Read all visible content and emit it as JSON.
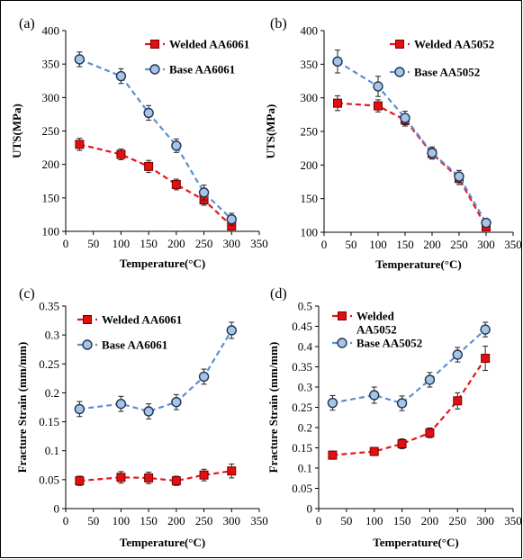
{
  "chart_data": [
    {
      "panel_label": "(a)",
      "type": "line",
      "xlabel": "Temperature(°C)",
      "ylabel": "UTS(MPa)",
      "xlim": [
        0,
        350
      ],
      "ylim": [
        100,
        400
      ],
      "xticks": [
        0,
        50,
        100,
        150,
        200,
        250,
        300,
        350
      ],
      "yticks": [
        100,
        150,
        200,
        250,
        300,
        350,
        400
      ],
      "x": [
        25,
        100,
        150,
        200,
        250,
        300
      ],
      "legend_position": "top-right",
      "series": [
        {
          "name": "Welded AA6061",
          "marker": "square",
          "color": "#e8141a",
          "marker_fill": "#e01010",
          "values": [
            230,
            215,
            197,
            170,
            147,
            108
          ],
          "errors": [
            9,
            8,
            9,
            8,
            8,
            6
          ]
        },
        {
          "name": "Base  AA6061",
          "marker": "circle",
          "color": "#5b8fcf",
          "marker_fill": "#a6c4e6",
          "values": [
            357,
            332,
            277,
            228,
            158,
            118
          ],
          "errors": [
            11,
            11,
            11,
            10,
            11,
            9
          ]
        }
      ]
    },
    {
      "panel_label": "(b)",
      "type": "line",
      "xlabel": "Temperature(°C)",
      "ylabel": "UTS(MPa)",
      "xlim": [
        0,
        350
      ],
      "ylim": [
        100,
        400
      ],
      "xticks": [
        0,
        50,
        100,
        150,
        200,
        250,
        300,
        350
      ],
      "yticks": [
        100,
        150,
        200,
        250,
        300,
        350,
        400
      ],
      "x": [
        25,
        100,
        150,
        200,
        250,
        300
      ],
      "legend_position": "top-right",
      "series": [
        {
          "name": "Welded AA5052",
          "marker": "square",
          "color": "#e8141a",
          "marker_fill": "#e01010",
          "values": [
            292,
            288,
            267,
            217,
            180,
            108
          ],
          "errors": [
            11,
            9,
            9,
            8,
            9,
            6
          ]
        },
        {
          "name": "Base AA5052",
          "marker": "circle",
          "color": "#5b8fcf",
          "marker_fill": "#a6c4e6",
          "values": [
            354,
            317,
            270,
            218,
            183,
            114
          ],
          "errors": [
            17,
            15,
            10,
            9,
            9,
            6
          ]
        }
      ]
    },
    {
      "panel_label": "(c)",
      "type": "line",
      "xlabel": "Temperature(°C)",
      "ylabel": "Fracture Strain (mm/mm)",
      "xlim": [
        0,
        350
      ],
      "ylim": [
        0,
        0.35
      ],
      "xticks": [
        0,
        50,
        100,
        150,
        200,
        250,
        300,
        350
      ],
      "yticks": [
        0,
        0.05,
        0.1,
        0.15,
        0.2,
        0.25,
        0.3,
        0.35
      ],
      "x": [
        25,
        100,
        150,
        200,
        250,
        300
      ],
      "legend_position": "top-left",
      "series": [
        {
          "name": "Welded AA6061",
          "marker": "square",
          "color": "#e8141a",
          "marker_fill": "#e01010",
          "values": [
            0.048,
            0.054,
            0.053,
            0.048,
            0.058,
            0.065
          ],
          "errors": [
            0.008,
            0.01,
            0.01,
            0.008,
            0.01,
            0.012
          ]
        },
        {
          "name": "Base AA6061",
          "marker": "circle",
          "color": "#5b8fcf",
          "marker_fill": "#a6c4e6",
          "values": [
            0.172,
            0.181,
            0.168,
            0.184,
            0.228,
            0.308
          ],
          "errors": [
            0.013,
            0.013,
            0.013,
            0.013,
            0.013,
            0.014
          ]
        }
      ]
    },
    {
      "panel_label": "(d)",
      "type": "line",
      "xlabel": "Temperature(°C)",
      "ylabel": "Fracture Strain (mm/mm)",
      "xlim": [
        0,
        350
      ],
      "ylim": [
        0,
        0.5
      ],
      "xticks": [
        0,
        50,
        100,
        150,
        200,
        250,
        300,
        350
      ],
      "yticks": [
        0,
        0.05,
        0.1,
        0.15,
        0.2,
        0.25,
        0.3,
        0.35,
        0.4,
        0.45,
        0.5
      ],
      "x": [
        25,
        100,
        150,
        200,
        250,
        300
      ],
      "legend_position": "top-left",
      "series": [
        {
          "name": "Welded AA5052",
          "marker": "square",
          "color": "#e8141a",
          "marker_fill": "#e01010",
          "values": [
            0.132,
            0.141,
            0.16,
            0.187,
            0.266,
            0.371
          ],
          "errors": [
            0.01,
            0.01,
            0.012,
            0.012,
            0.02,
            0.03
          ]
        },
        {
          "name": "Base AA5052",
          "marker": "circle",
          "color": "#5b8fcf",
          "marker_fill": "#a6c4e6",
          "values": [
            0.261,
            0.28,
            0.26,
            0.318,
            0.38,
            0.442
          ],
          "errors": [
            0.018,
            0.02,
            0.018,
            0.018,
            0.018,
            0.018
          ]
        }
      ]
    }
  ]
}
